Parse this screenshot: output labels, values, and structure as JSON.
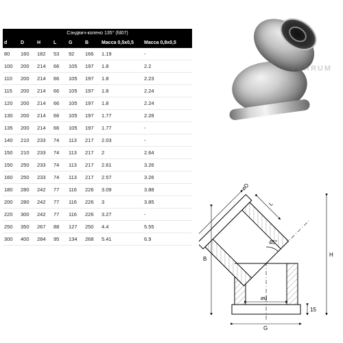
{
  "table": {
    "title": "Сэндвич-колено 135° (fd07)",
    "columns": [
      "d",
      "D",
      "H",
      "L",
      "G",
      "B",
      "Масса 0,5х0,5",
      "Масса 0,8х0,5"
    ],
    "rows": [
      [
        "80",
        "160",
        "182",
        "53",
        "92",
        "166",
        "1.19",
        "-"
      ],
      [
        "100",
        "200",
        "214",
        "66",
        "105",
        "197",
        "1.8",
        "2.2"
      ],
      [
        "110",
        "200",
        "214",
        "66",
        "105",
        "197",
        "1.8",
        "2.23"
      ],
      [
        "115",
        "200",
        "214",
        "66",
        "105",
        "197",
        "1.8",
        "2.24"
      ],
      [
        "120",
        "200",
        "214",
        "66",
        "105",
        "197",
        "1.8",
        "2.24"
      ],
      [
        "130",
        "200",
        "214",
        "66",
        "105",
        "197",
        "1.77",
        "2.28"
      ],
      [
        "135",
        "200",
        "214",
        "66",
        "105",
        "197",
        "1.77",
        "-"
      ],
      [
        "140",
        "210",
        "233",
        "74",
        "113",
        "217",
        "2.03",
        "-"
      ],
      [
        "150",
        "210",
        "233",
        "74",
        "113",
        "217",
        "2",
        "2.64"
      ],
      [
        "150",
        "250",
        "233",
        "74",
        "113",
        "217",
        "2.61",
        "3.26"
      ],
      [
        "160",
        "250",
        "233",
        "74",
        "113",
        "217",
        "2.57",
        "3.26"
      ],
      [
        "180",
        "280",
        "242",
        "77",
        "116",
        "226",
        "3.09",
        "3.88"
      ],
      [
        "200",
        "280",
        "242",
        "77",
        "116",
        "226",
        "3",
        "3.85"
      ],
      [
        "220",
        "300",
        "242",
        "77",
        "116",
        "226",
        "3.27",
        "-"
      ],
      [
        "250",
        "350",
        "267",
        "88",
        "127",
        "250",
        "4.4",
        "5.55"
      ],
      [
        "300",
        "400",
        "284",
        "95",
        "134",
        "268",
        "5.41",
        "6.9"
      ]
    ],
    "header_bg": "#000000",
    "header_fg": "#ffffff",
    "row_border": "#e8e8e8",
    "font_size_header": 7,
    "font_size_row": 7.5
  },
  "photo": {
    "watermark": "FERRUM",
    "highlight": "#f2f2f2",
    "mid": "#c2c2c2",
    "shadow": "#4e4e4e"
  },
  "diagram": {
    "stroke": "#000000",
    "hatch": "#9a9a9a",
    "angle_label": "45°",
    "dims": {
      "L": "L",
      "B": "B",
      "H": "H",
      "G": "G",
      "d_small": "⌀d",
      "D_big": "⌀D",
      "t1": "15",
      "t2": "15"
    }
  }
}
